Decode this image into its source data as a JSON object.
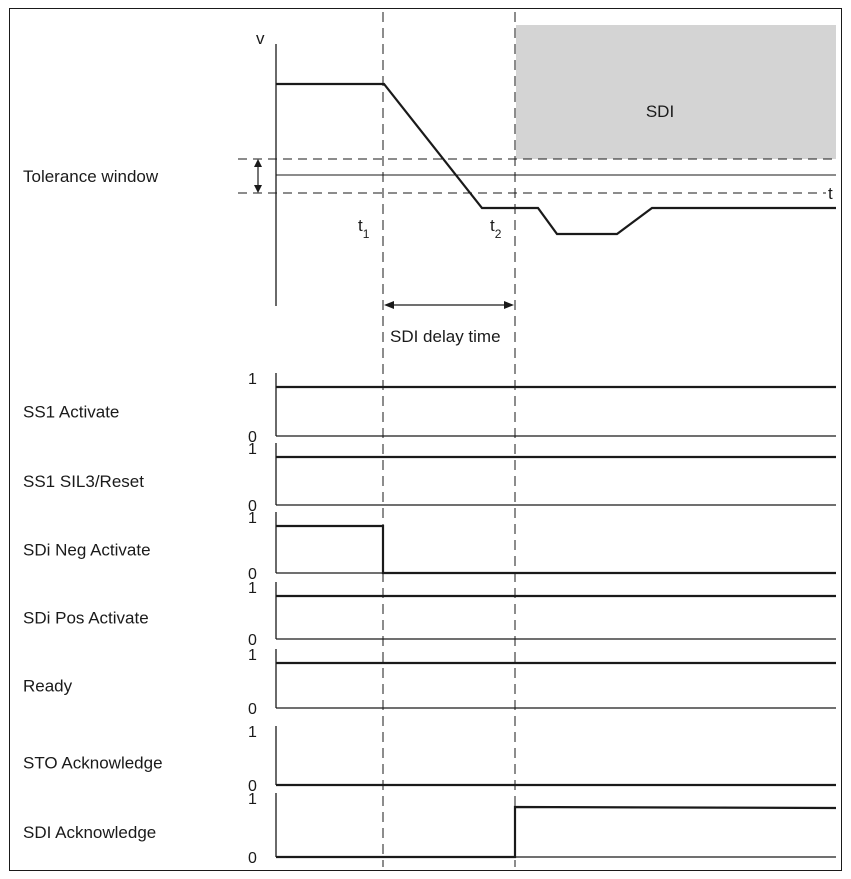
{
  "top": {
    "v_axis_label": "v",
    "t_axis_label": "t",
    "tolerance_label": "Tolerance window",
    "sdi_region_label": "SDI",
    "delay_label": "SDI delay time",
    "t1_label": "t",
    "t1_sub": "1",
    "t2_label": "t",
    "t2_sub": "2",
    "colors": {
      "sdi_region": "#d4d4d4",
      "line": "#1a1a1a"
    }
  },
  "signals": [
    {
      "name": "SS1 Activate",
      "high": "1",
      "low": "0"
    },
    {
      "name": "SS1 SIL3/Reset",
      "high": "1",
      "low": "0"
    },
    {
      "name": "SDi Neg Activate",
      "high": "1",
      "low": "0"
    },
    {
      "name": "SDi Pos Activate",
      "high": "1",
      "low": "0"
    },
    {
      "name": "Ready",
      "high": "1",
      "low": "0"
    },
    {
      "name": "STO Acknowledge",
      "high": "1",
      "low": "0"
    },
    {
      "name": "SDI Acknowledge",
      "high": "1",
      "low": "0"
    }
  ]
}
